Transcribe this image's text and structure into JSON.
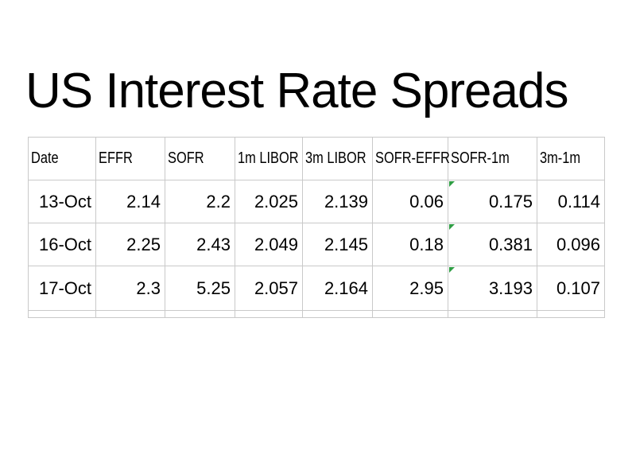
{
  "chart_data": {
    "type": "table",
    "title": "US Interest Rate Spreads",
    "columns": [
      "Date",
      "EFFR",
      "SOFR",
      "1m LIBOR",
      "3m LIBOR",
      "SOFR-EFFR",
      "SOFR-1m",
      "3m-1m"
    ],
    "rows": [
      [
        "13-Oct",
        "2.14",
        "2.2",
        "2.025",
        "2.139",
        "0.06",
        "0.175",
        "0.114"
      ],
      [
        "16-Oct",
        "2.25",
        "2.43",
        "2.049",
        "2.145",
        "0.18",
        "0.381",
        "0.096"
      ],
      [
        "17-Oct",
        "2.3",
        "5.25",
        "2.057",
        "2.164",
        "2.95",
        "3.193",
        "0.107"
      ]
    ],
    "error_indicator_on_column": "SOFR-1m",
    "layout": {
      "grid": "on",
      "header_align": "left",
      "data_align": "right",
      "partial_empty_row_below": true
    }
  },
  "colors": {
    "background": "#ffffff",
    "text": "#000000",
    "gridline": "#c9c9c9",
    "error_indicator": "#2f9e44"
  }
}
